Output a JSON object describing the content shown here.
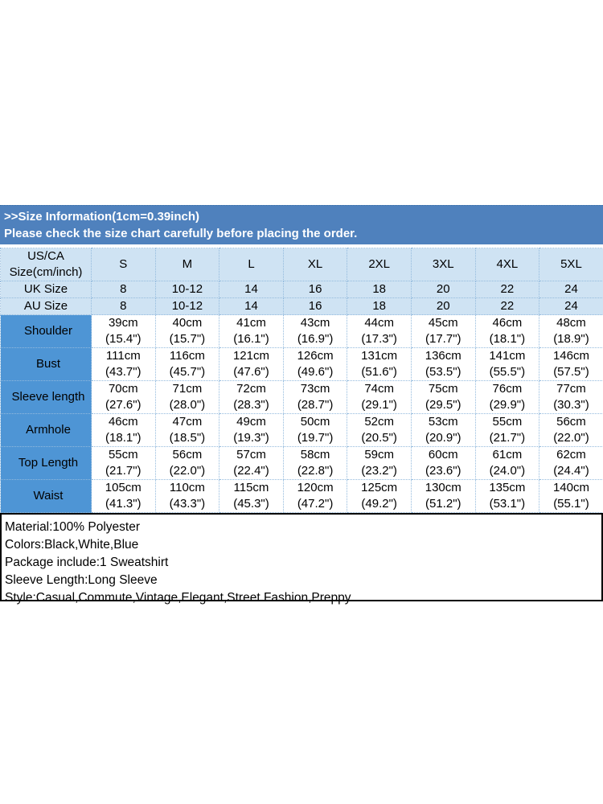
{
  "palette": {
    "banner_bg": "#4f81bd",
    "header_row_bg": "#cfe3f3",
    "label_column_bg": "#4e95d5",
    "label_text": "#1f3864",
    "grid_dotted": "#93badd",
    "details_border": "#000000"
  },
  "banner": {
    "line1": ">>Size Information(1cm=0.39inch)",
    "line2": "Please check the size chart carefully before placing the order."
  },
  "size_table": {
    "corner": "US/CA\nSize(cm/inch)",
    "sizes": [
      "S",
      "M",
      "L",
      "XL",
      "2XL",
      "3XL",
      "4XL",
      "5XL"
    ],
    "uk": {
      "label": "UK Size",
      "values": [
        "8",
        "10-12",
        "14",
        "16",
        "18",
        "20",
        "22",
        "24"
      ]
    },
    "au": {
      "label": "AU Size",
      "values": [
        "8",
        "10-12",
        "14",
        "16",
        "18",
        "20",
        "22",
        "24"
      ]
    },
    "rows": [
      {
        "label": "Shoulder",
        "values": [
          "39cm\n(15.4\")",
          "40cm\n(15.7\")",
          "41cm\n(16.1\")",
          "43cm\n(16.9\")",
          "44cm\n(17.3\")",
          "45cm\n(17.7\")",
          "46cm\n(18.1\")",
          "48cm\n(18.9\")"
        ]
      },
      {
        "label": "Bust",
        "values": [
          "111cm\n(43.7\")",
          "116cm\n(45.7\")",
          "121cm\n(47.6\")",
          "126cm\n(49.6\")",
          "131cm\n(51.6\")",
          "136cm\n(53.5\")",
          "141cm\n(55.5\")",
          "146cm\n(57.5\")"
        ]
      },
      {
        "label": "Sleeve length",
        "values": [
          "70cm\n(27.6\")",
          "71cm\n(28.0\")",
          "72cm\n(28.3\")",
          "73cm\n(28.7\")",
          "74cm\n(29.1\")",
          "75cm\n(29.5\")",
          "76cm\n(29.9\")",
          "77cm\n(30.3\")"
        ]
      },
      {
        "label": "Armhole",
        "values": [
          "46cm\n(18.1\")",
          "47cm\n(18.5\")",
          "49cm\n(19.3\")",
          "50cm\n(19.7\")",
          "52cm\n(20.5\")",
          "53cm\n(20.9\")",
          "55cm\n(21.7\")",
          "56cm\n(22.0\")"
        ]
      },
      {
        "label": "Top Length",
        "values": [
          "55cm\n(21.7\")",
          "56cm\n(22.0\")",
          "57cm\n(22.4\")",
          "58cm\n(22.8\")",
          "59cm\n(23.2\")",
          "60cm\n(23.6\")",
          "61cm\n(24.0\")",
          "62cm\n(24.4\")"
        ]
      },
      {
        "label": "Waist",
        "values": [
          "105cm\n(41.3\")",
          "110cm\n(43.3\")",
          "115cm\n(45.3\")",
          "120cm\n(47.2\")",
          "125cm\n(49.2\")",
          "130cm\n(51.2\")",
          "135cm\n(53.1\")",
          "140cm\n(55.1\")"
        ]
      }
    ]
  },
  "details": {
    "lines": [
      "Material:100% Polyester",
      "Colors:Black,White,Blue",
      "Package include:1 Sweatshirt",
      "Sleeve Length:Long Sleeve",
      "Style:Casual,Commute,Vintage,Elegant,Street Fashion,Preppy"
    ]
  }
}
